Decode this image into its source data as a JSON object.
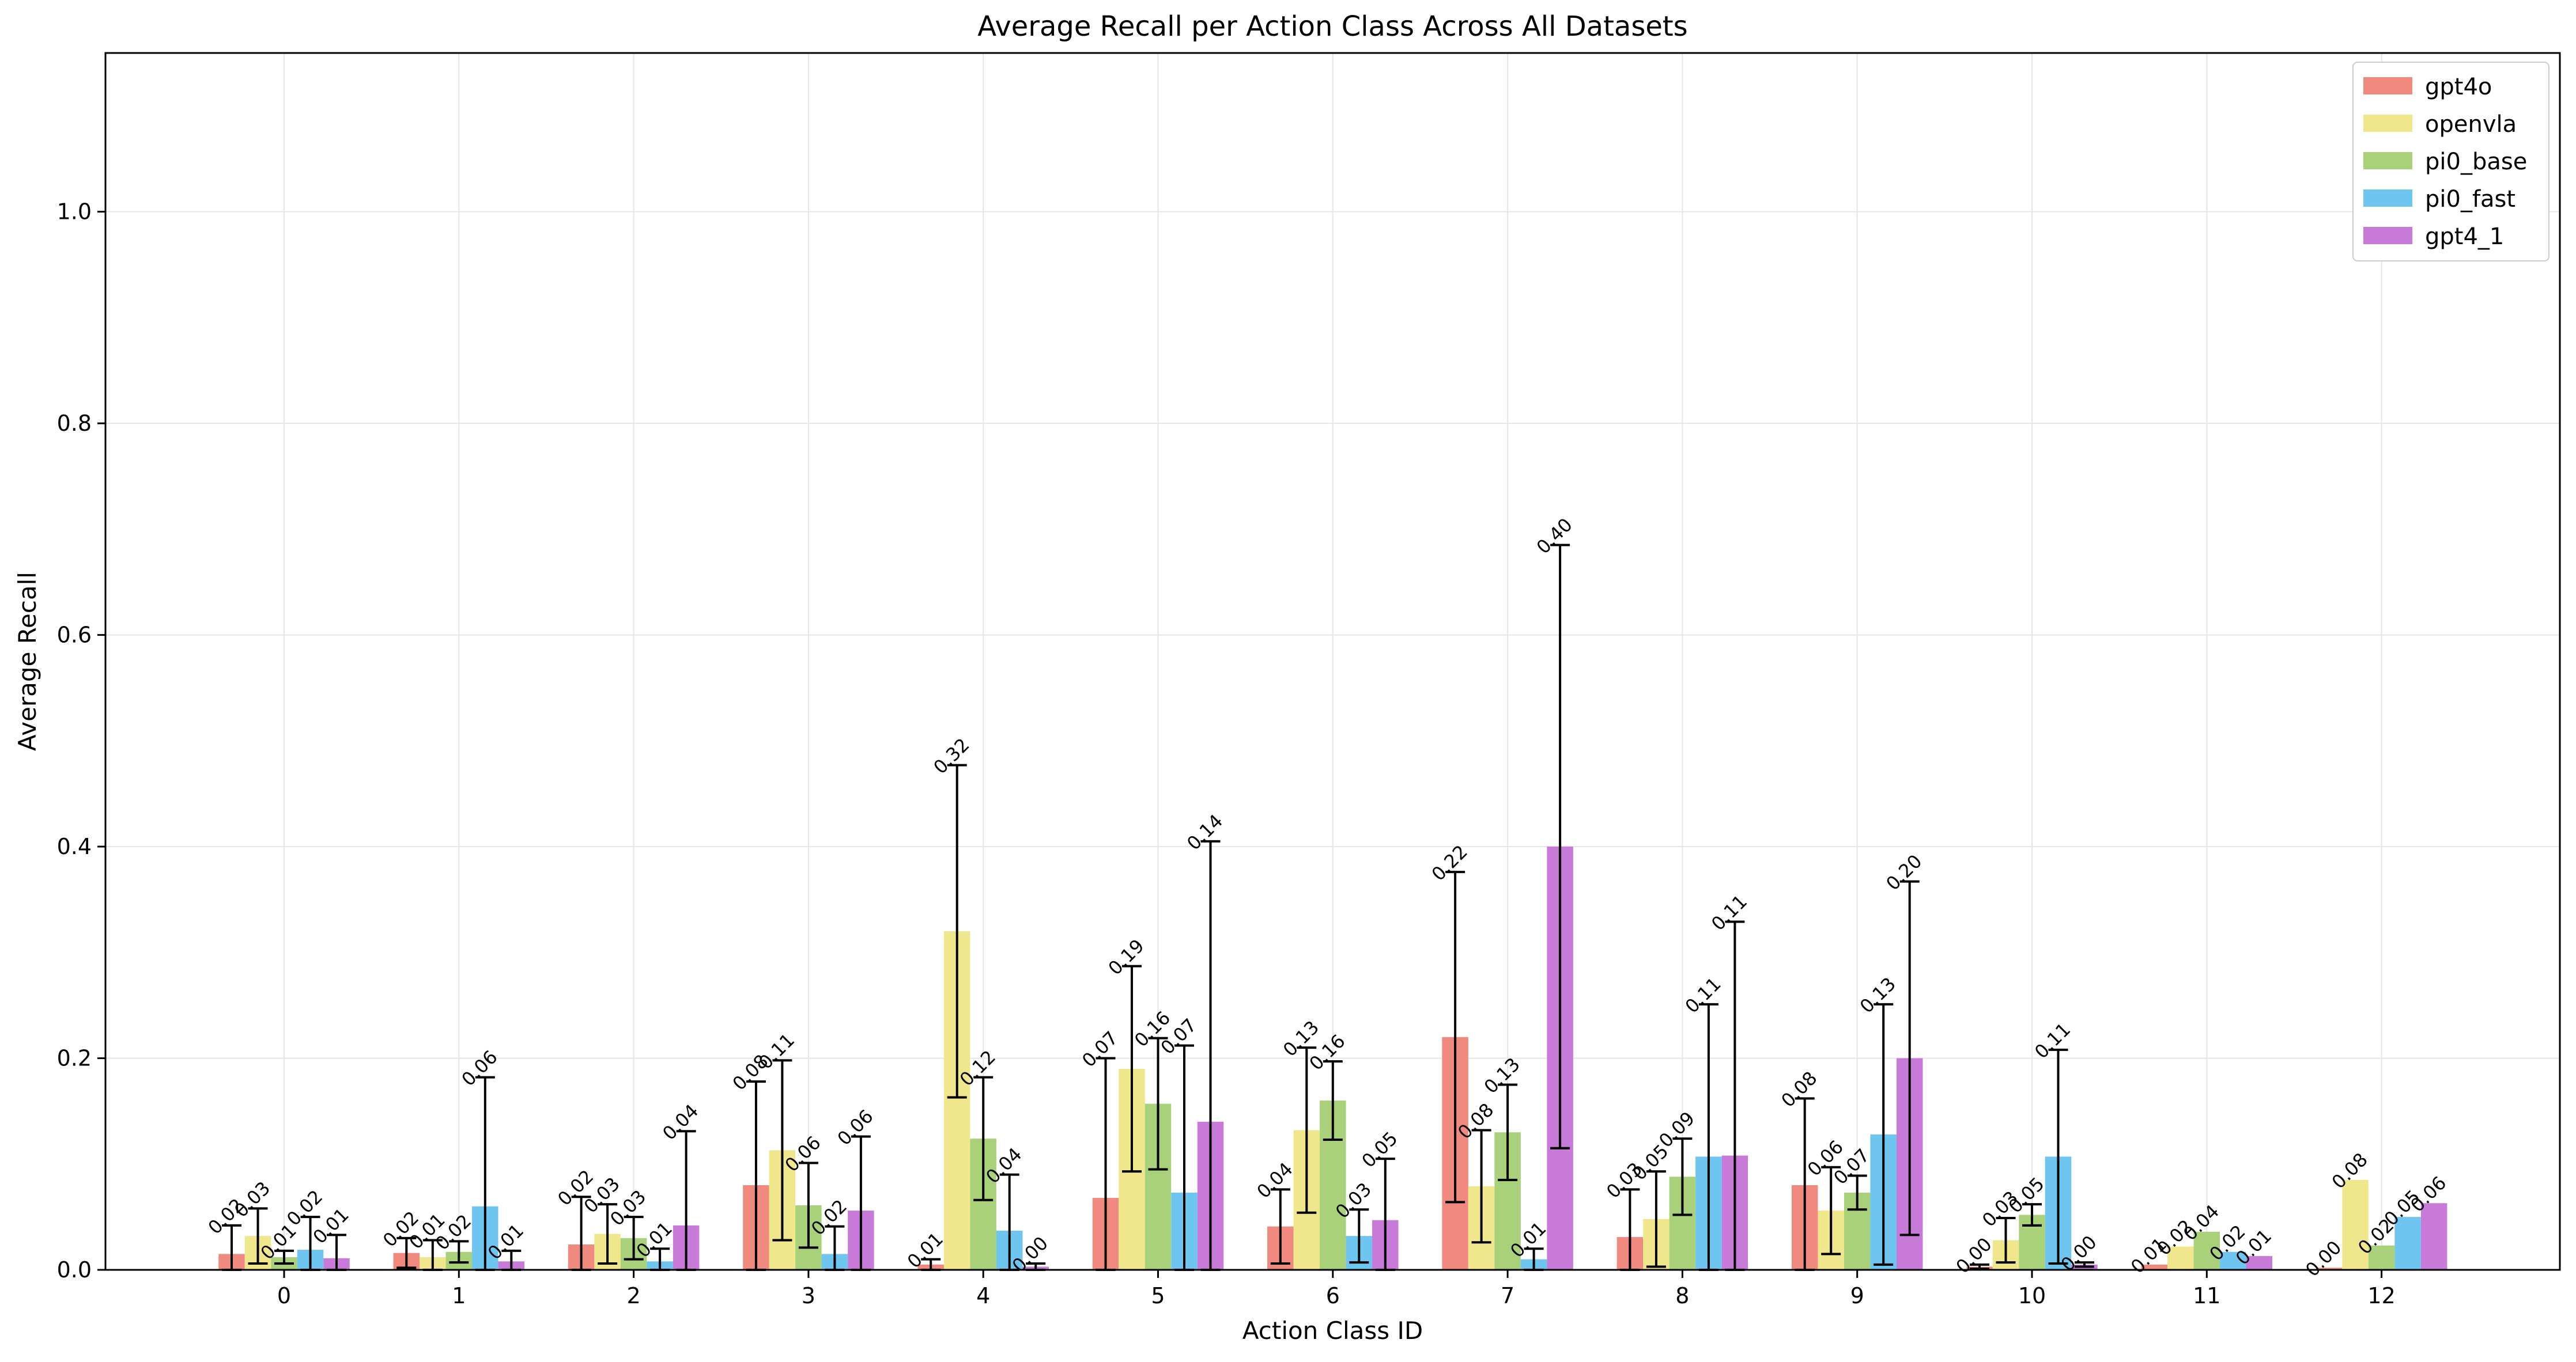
{
  "chart_data": {
    "type": "bar",
    "title": "Average Recall per Action Class Across All Datasets",
    "xlabel": "Action Class ID",
    "ylabel": "Average Recall",
    "ylim": [
      0,
      1.15
    ],
    "yticks": [
      "0.0",
      "0.2",
      "0.4",
      "0.6",
      "0.8",
      "1.0"
    ],
    "grid": true,
    "legend_position": "top-right",
    "categories": [
      "0",
      "1",
      "2",
      "3",
      "4",
      "5",
      "6",
      "7",
      "8",
      "9",
      "10",
      "11",
      "12"
    ],
    "series": [
      {
        "name": "gpt4o",
        "color": "#f08a7e",
        "values": [
          0.015,
          0.016,
          0.024,
          0.08,
          0.005,
          0.068,
          0.041,
          0.22,
          0.031,
          0.08,
          0.003,
          0.005,
          0.002
        ],
        "errors": [
          0.027,
          0.014,
          0.045,
          0.098,
          0.005,
          0.132,
          0.035,
          0.156,
          0.045,
          0.082,
          0.002,
          0.0,
          0.0
        ],
        "labels": [
          "0.02",
          "0.02",
          "0.02",
          "0.08",
          "0.01",
          "0.07",
          "0.04",
          "0.22",
          "0.03",
          "0.08",
          "0.00",
          "0.01",
          "0.00"
        ]
      },
      {
        "name": "openvla",
        "color": "#f0e68c",
        "values": [
          0.032,
          0.012,
          0.034,
          0.113,
          0.32,
          0.19,
          0.132,
          0.079,
          0.048,
          0.056,
          0.028,
          0.022,
          0.085
        ],
        "errors": [
          0.026,
          0.016,
          0.028,
          0.085,
          0.157,
          0.097,
          0.078,
          0.053,
          0.045,
          0.041,
          0.021,
          0.0,
          0.0
        ],
        "labels": [
          "0.03",
          "0.01",
          "0.03",
          "0.11",
          "0.32",
          "0.19",
          "0.13",
          "0.08",
          "0.05",
          "0.06",
          "0.03",
          "0.02",
          "0.08"
        ]
      },
      {
        "name": "pi0_base",
        "color": "#a8d17a",
        "values": [
          0.012,
          0.017,
          0.03,
          0.061,
          0.124,
          0.157,
          0.16,
          0.13,
          0.088,
          0.073,
          0.052,
          0.036,
          0.023
        ],
        "errors": [
          0.006,
          0.01,
          0.02,
          0.04,
          0.058,
          0.062,
          0.037,
          0.045,
          0.036,
          0.016,
          0.01,
          0.0,
          0.0
        ],
        "labels": [
          "0.01",
          "0.02",
          "0.03",
          "0.06",
          "0.12",
          "0.16",
          "0.16",
          "0.13",
          "0.09",
          "0.07",
          "0.05",
          "0.04",
          "0.02"
        ]
      },
      {
        "name": "pi0_fast",
        "color": "#6ec6f0",
        "values": [
          0.019,
          0.06,
          0.008,
          0.015,
          0.037,
          0.073,
          0.032,
          0.01,
          0.107,
          0.128,
          0.107,
          0.017,
          0.05
        ],
        "errors": [
          0.031,
          0.122,
          0.012,
          0.026,
          0.053,
          0.139,
          0.025,
          0.01,
          0.144,
          0.123,
          0.101,
          0.0,
          0.0
        ],
        "labels": [
          "0.02",
          "0.06",
          "0.01",
          "0.02",
          "0.04",
          "0.07",
          "0.03",
          "0.01",
          "0.11",
          "0.13",
          "0.11",
          "0.02",
          "0.05"
        ]
      },
      {
        "name": "gpt4_1",
        "color": "#c87ad8",
        "values": [
          0.011,
          0.008,
          0.042,
          0.056,
          0.003,
          0.14,
          0.047,
          0.4,
          0.108,
          0.2,
          0.005,
          0.013,
          0.063
        ],
        "errors": [
          0.022,
          0.01,
          0.089,
          0.07,
          0.003,
          0.265,
          0.058,
          0.285,
          0.221,
          0.167,
          0.002,
          0.0,
          0.0
        ],
        "labels": [
          "0.01",
          "0.01",
          "0.04",
          "0.06",
          "0.00",
          "0.14",
          "0.05",
          "0.40",
          "0.11",
          "0.20",
          "0.00",
          "0.01",
          "0.06"
        ]
      }
    ]
  }
}
